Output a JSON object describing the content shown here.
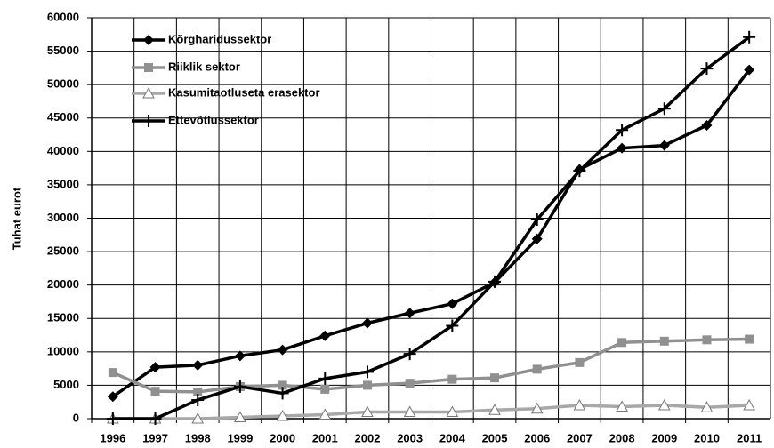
{
  "chart_data": {
    "type": "line",
    "y_label": "Tuhat eurot",
    "categories": [
      "1996",
      "1997",
      "1998",
      "1999",
      "2000",
      "2001",
      "2002",
      "2003",
      "2004",
      "2005",
      "2006",
      "2007",
      "2008",
      "2009",
      "2010",
      "2011"
    ],
    "series": [
      {
        "name": "Kõrgharidussektor",
        "color": "#000000",
        "marker": "diamond",
        "values": [
          3300,
          7700,
          8000,
          9400,
          10300,
          12400,
          14300,
          15800,
          17200,
          20400,
          26900,
          37300,
          40500,
          40900,
          43900,
          52200
        ]
      },
      {
        "name": "Riiklik sektor",
        "color": "#909090",
        "marker": "square",
        "values": [
          6900,
          4100,
          4000,
          4800,
          5000,
          4400,
          5000,
          5300,
          5900,
          6100,
          7400,
          8400,
          11400,
          11600,
          11800,
          11900
        ]
      },
      {
        "name": "Kasumitaotluseta erasektor",
        "color": "#a8a8a8",
        "marker": "triangle",
        "values": [
          0,
          0,
          0,
          200,
          400,
          600,
          1000,
          1000,
          1000,
          1300,
          1500,
          2000,
          1800,
          2000,
          1700,
          2000
        ]
      },
      {
        "name": "Ettevõtlussektor",
        "color": "#000000",
        "marker": "plus",
        "values": [
          0,
          0,
          2800,
          4800,
          3800,
          6000,
          7000,
          9700,
          13900,
          20500,
          29800,
          37100,
          43200,
          46400,
          52400,
          57100
        ]
      }
    ],
    "ylim": [
      0,
      60000
    ],
    "yticks": [
      0,
      5000,
      10000,
      15000,
      20000,
      25000,
      30000,
      35000,
      40000,
      45000,
      50000,
      55000,
      60000
    ],
    "grid": true
  }
}
